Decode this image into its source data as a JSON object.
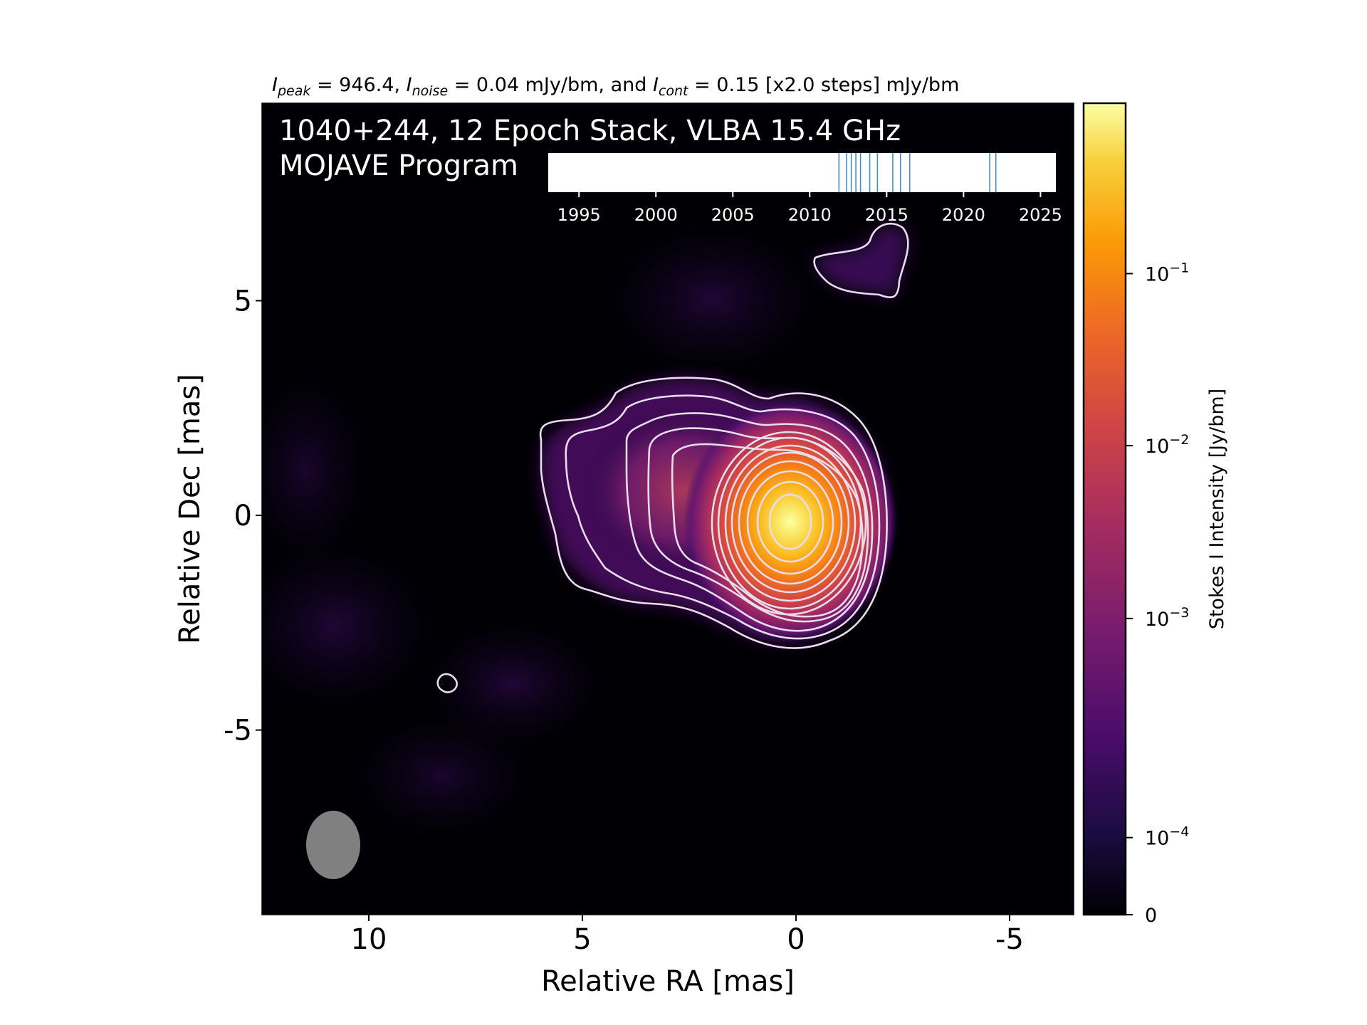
{
  "chart_data": {
    "type": "heatmap",
    "header": {
      "peak_sym": "I",
      "peak_sub": "peak",
      "peak_val": " = 946.4, ",
      "noise_sym": "I",
      "noise_sub": "noise",
      "noise_val": " = 0.04 mJy/bm, and ",
      "cont_sym": "I",
      "cont_sub": "cont",
      "cont_val": " = 0.15 [x2.0 steps] mJy/bm"
    },
    "overlay_title_line1": "1040+244, 12 Epoch Stack, VLBA 15.4 GHz",
    "overlay_title_line2": "MOJAVE Program",
    "xlabel": "Relative RA [mas]",
    "ylabel": "Relative Dec [mas]",
    "xlim": [
      12.5,
      -6.5
    ],
    "ylim": [
      -9.3,
      9.6
    ],
    "x_ticks": [
      10,
      5,
      0,
      -5
    ],
    "x_tick_labels": [
      "10",
      "5",
      "0",
      "-5"
    ],
    "y_ticks": [
      5,
      0,
      -5
    ],
    "y_tick_labels": [
      "5",
      "0",
      "-5"
    ],
    "colormap": "inferno",
    "colorbar": {
      "label": "Stokes I Intensity [Jy/bm]",
      "scale": "symlog",
      "ticks": [
        {
          "base": "0",
          "exp": "",
          "frac": 0.0
        },
        {
          "base": "10",
          "exp": "−4",
          "frac": 0.095
        },
        {
          "base": "10",
          "exp": "−3",
          "frac": 0.365
        },
        {
          "base": "10",
          "exp": "−2",
          "frac": 0.578
        },
        {
          "base": "10",
          "exp": "−1",
          "frac": 0.79
        }
      ]
    },
    "core_position_mas": [
      0,
      0
    ],
    "contour_levels_mJy_per_beam": [
      0.15,
      0.3,
      0.6,
      1.2,
      2.4,
      4.8,
      9.6,
      19.2,
      38.4,
      76.8,
      153.6,
      307.2,
      614.4
    ],
    "beam": {
      "major_mas": 1.6,
      "minor_mas": 1.2,
      "pa_deg": 0,
      "center_mas": [
        10.6,
        -7.6
      ],
      "color": "#808080"
    },
    "epoch_timeline": {
      "xlim": [
        1993,
        2026
      ],
      "ticks": [
        1995,
        2000,
        2005,
        2010,
        2015,
        2020,
        2025
      ],
      "epochs": [
        2011.9,
        2012.4,
        2012.7,
        2013.0,
        2013.3,
        2013.9,
        2014.4,
        2015.4,
        2015.9,
        2016.5,
        2021.7,
        2022.1
      ],
      "line_color": "#4a8bbf"
    }
  }
}
